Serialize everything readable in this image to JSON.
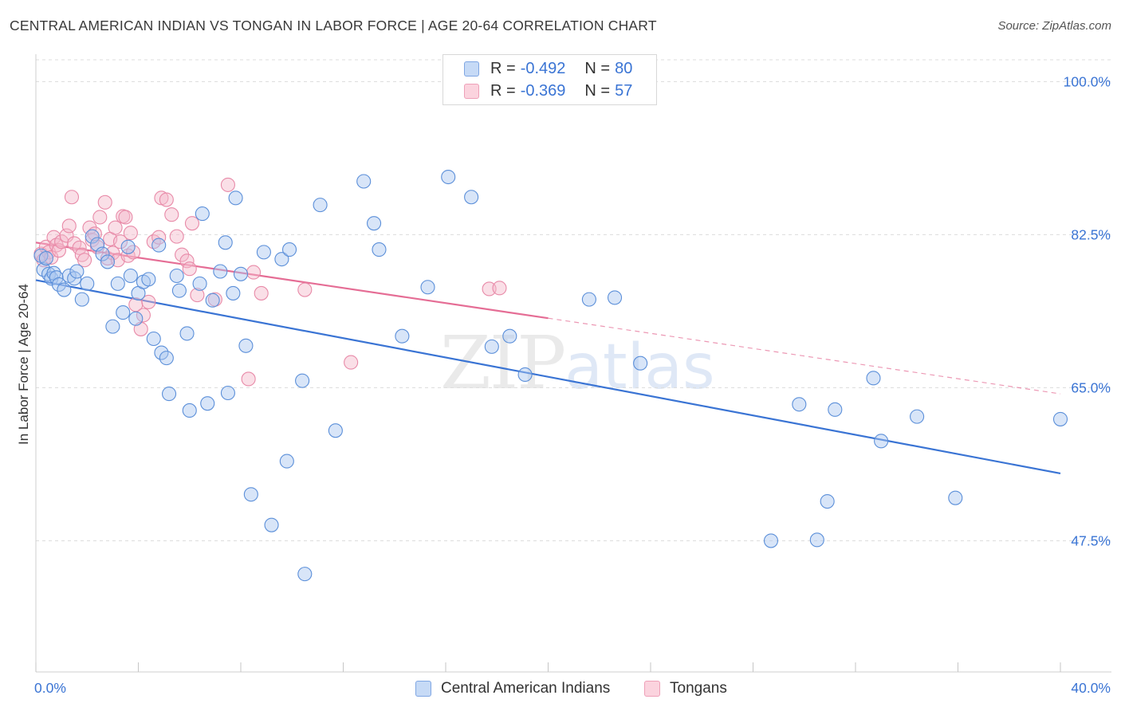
{
  "header": {
    "title": "CENTRAL AMERICAN INDIAN VS TONGAN IN LABOR FORCE | AGE 20-64 CORRELATION CHART",
    "source": "Source: ZipAtlas.com"
  },
  "watermark": {
    "zip": "ZIP",
    "atlas": "atlas"
  },
  "legend": {
    "rows": [
      {
        "r_label": "R =",
        "r_value": "-0.492",
        "n_label": "N =",
        "n_value": "80",
        "color": "#a9c6f0"
      },
      {
        "r_label": "R =",
        "r_value": "-0.369",
        "n_label": "N =",
        "n_value": "57",
        "color": "#f5b8c9"
      }
    ]
  },
  "bottom_legend": {
    "items": [
      {
        "label": "Central American Indians",
        "color": "#a9c6f0"
      },
      {
        "label": "Tongans",
        "color": "#f5b8c9"
      }
    ]
  },
  "chart_data": {
    "type": "scatter",
    "ylabel": "In Labor Force | Age 20-64",
    "xlim": [
      0,
      40
    ],
    "ylim": [
      32.5,
      102.5
    ],
    "x_tick_labels": [
      {
        "value": 0,
        "label": "0.0%"
      },
      {
        "value": 40,
        "label": "40.0%"
      }
    ],
    "y_tick_labels": [
      {
        "value": 100,
        "label": "100.0%"
      },
      {
        "value": 82.5,
        "label": "82.5%"
      },
      {
        "value": 65,
        "label": "65.0%"
      },
      {
        "value": 47.5,
        "label": "47.5%"
      }
    ],
    "colors": {
      "blue": "#3a74d4",
      "pink": "#e56d95",
      "tick_label": "#3a74d4"
    },
    "series": [
      {
        "name": "Central American Indians",
        "color": "#a9c6f0",
        "stroke": "#5b8fd9",
        "trend": {
          "x0": 0,
          "y0": 77.3,
          "x1": 40,
          "y1": 55.2,
          "dashed_from": null
        },
        "points": [
          [
            0.2,
            80.1
          ],
          [
            0.3,
            78.5
          ],
          [
            0.4,
            79.8
          ],
          [
            0.5,
            78.0
          ],
          [
            0.6,
            77.5
          ],
          [
            0.7,
            78.1
          ],
          [
            0.8,
            77.6
          ],
          [
            0.9,
            76.8
          ],
          [
            1.1,
            76.2
          ],
          [
            1.3,
            77.8
          ],
          [
            1.5,
            77.5
          ],
          [
            1.6,
            78.3
          ],
          [
            1.8,
            75.1
          ],
          [
            2.0,
            76.9
          ],
          [
            2.2,
            82.3
          ],
          [
            2.4,
            81.4
          ],
          [
            2.6,
            80.3
          ],
          [
            2.8,
            79.4
          ],
          [
            3.0,
            72.0
          ],
          [
            3.2,
            76.9
          ],
          [
            3.4,
            73.6
          ],
          [
            3.6,
            81.1
          ],
          [
            3.7,
            77.8
          ],
          [
            3.9,
            72.9
          ],
          [
            4.0,
            75.8
          ],
          [
            4.2,
            77.1
          ],
          [
            4.4,
            77.4
          ],
          [
            4.6,
            70.6
          ],
          [
            4.8,
            81.3
          ],
          [
            4.9,
            69.0
          ],
          [
            5.1,
            68.4
          ],
          [
            5.2,
            64.3
          ],
          [
            5.5,
            77.8
          ],
          [
            5.6,
            76.1
          ],
          [
            5.9,
            71.2
          ],
          [
            6.0,
            62.4
          ],
          [
            6.4,
            76.9
          ],
          [
            6.5,
            84.9
          ],
          [
            6.7,
            63.2
          ],
          [
            6.9,
            75.0
          ],
          [
            7.2,
            78.3
          ],
          [
            7.4,
            81.6
          ],
          [
            7.5,
            64.4
          ],
          [
            7.7,
            75.8
          ],
          [
            7.8,
            86.7
          ],
          [
            8.0,
            78.0
          ],
          [
            8.2,
            69.8
          ],
          [
            8.4,
            52.8
          ],
          [
            8.9,
            80.5
          ],
          [
            9.2,
            49.3
          ],
          [
            9.6,
            79.7
          ],
          [
            9.9,
            80.8
          ],
          [
            9.8,
            56.6
          ],
          [
            10.4,
            65.8
          ],
          [
            10.5,
            43.7
          ],
          [
            11.1,
            85.9
          ],
          [
            11.7,
            60.1
          ],
          [
            12.8,
            88.6
          ],
          [
            13.2,
            83.8
          ],
          [
            13.4,
            80.8
          ],
          [
            14.3,
            70.9
          ],
          [
            15.3,
            76.5
          ],
          [
            16.1,
            89.1
          ],
          [
            17.0,
            86.8
          ],
          [
            17.8,
            69.7
          ],
          [
            18.5,
            70.9
          ],
          [
            19.1,
            66.5
          ],
          [
            22.6,
            75.3
          ],
          [
            23.6,
            67.8
          ],
          [
            28.7,
            47.5
          ],
          [
            29.8,
            63.1
          ],
          [
            30.5,
            47.6
          ],
          [
            30.9,
            52.0
          ],
          [
            31.2,
            62.5
          ],
          [
            32.7,
            66.1
          ],
          [
            33.0,
            58.9
          ],
          [
            34.4,
            61.7
          ],
          [
            35.9,
            52.4
          ],
          [
            40.0,
            61.4
          ],
          [
            21.6,
            75.1
          ]
        ]
      },
      {
        "name": "Tongans",
        "color": "#f5b8c9",
        "stroke": "#e88aa8",
        "trend": {
          "x0": 0,
          "y0": 81.6,
          "x1": 40,
          "y1": 64.3,
          "dashed_from": 20
        },
        "points": [
          [
            0.2,
            80.3
          ],
          [
            0.3,
            79.6
          ],
          [
            0.4,
            81.1
          ],
          [
            0.5,
            80.5
          ],
          [
            0.6,
            79.9
          ],
          [
            0.7,
            82.2
          ],
          [
            0.8,
            81.3
          ],
          [
            0.9,
            80.7
          ],
          [
            1.0,
            81.7
          ],
          [
            1.2,
            82.4
          ],
          [
            1.3,
            83.5
          ],
          [
            1.4,
            86.8
          ],
          [
            1.5,
            81.5
          ],
          [
            1.7,
            81.0
          ],
          [
            1.8,
            80.2
          ],
          [
            1.9,
            79.6
          ],
          [
            2.1,
            83.3
          ],
          [
            2.2,
            81.9
          ],
          [
            2.3,
            82.6
          ],
          [
            2.4,
            81.1
          ],
          [
            2.5,
            84.5
          ],
          [
            2.7,
            86.2
          ],
          [
            2.8,
            79.8
          ],
          [
            2.9,
            82.0
          ],
          [
            3.0,
            80.4
          ],
          [
            3.1,
            83.3
          ],
          [
            3.2,
            79.6
          ],
          [
            3.3,
            81.7
          ],
          [
            3.4,
            84.6
          ],
          [
            3.5,
            84.5
          ],
          [
            3.6,
            80.1
          ],
          [
            3.7,
            82.7
          ],
          [
            3.8,
            80.5
          ],
          [
            3.9,
            74.5
          ],
          [
            4.1,
            71.7
          ],
          [
            4.2,
            73.3
          ],
          [
            4.4,
            74.8
          ],
          [
            4.6,
            81.7
          ],
          [
            4.8,
            82.2
          ],
          [
            4.9,
            86.7
          ],
          [
            5.1,
            86.5
          ],
          [
            5.3,
            84.8
          ],
          [
            5.5,
            82.3
          ],
          [
            5.7,
            80.2
          ],
          [
            5.9,
            79.5
          ],
          [
            6.0,
            78.6
          ],
          [
            6.1,
            83.8
          ],
          [
            6.3,
            75.6
          ],
          [
            7.0,
            75.1
          ],
          [
            7.5,
            88.2
          ],
          [
            8.3,
            66.0
          ],
          [
            8.5,
            78.2
          ],
          [
            8.8,
            75.8
          ],
          [
            10.5,
            76.2
          ],
          [
            12.3,
            67.9
          ],
          [
            17.7,
            76.3
          ],
          [
            18.1,
            76.4
          ]
        ]
      }
    ]
  }
}
